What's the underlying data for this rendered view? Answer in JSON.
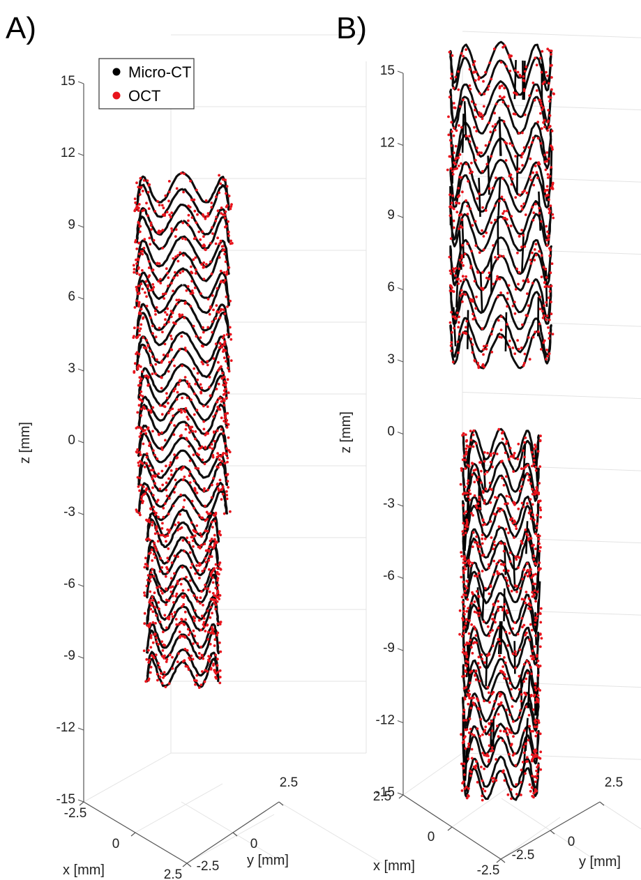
{
  "colors": {
    "micro_ct": "#000000",
    "oct": "#e8141c",
    "axis": "#555555",
    "grid": "#e3e3e3",
    "text": "#222222"
  },
  "legend": {
    "entries": [
      {
        "label": "Micro-CT",
        "color": "#000000"
      },
      {
        "label": "OCT",
        "color": "#e8141c"
      }
    ],
    "placement": "top-left of panel A"
  },
  "chart_data": [
    {
      "panel": "A)",
      "type": "scatter",
      "projection": "3d",
      "zlabel": "z [mm]",
      "xlabel": "x [mm]",
      "ylabel": "y [mm]",
      "zlim": [
        -15,
        15
      ],
      "zticks": [
        15,
        12,
        9,
        6,
        3,
        0,
        -3,
        -6,
        -9,
        -12,
        -15
      ],
      "xlim": [
        -2.5,
        2.5
      ],
      "xticks": [
        -2.5,
        0,
        2.5
      ],
      "ylim": [
        -2.5,
        2.5
      ],
      "yticks": [
        -2.5,
        0,
        2.5
      ],
      "grid": true,
      "series": [
        {
          "name": "Micro-CT",
          "color": "#000000",
          "marker": "line"
        },
        {
          "name": "OCT",
          "color": "#e8141c",
          "marker": "dot"
        }
      ],
      "stent": {
        "z_range": [
          -10,
          11
        ],
        "segments": [
          {
            "z0": 3,
            "z1": 11,
            "radius_mm": 2.2,
            "rings": 6
          },
          {
            "z0": -3,
            "z1": 3,
            "radius_mm": 2.1,
            "rings": 5
          },
          {
            "z0": -10,
            "z1": -3,
            "radius_mm": 1.7,
            "rings": 6
          }
        ]
      }
    },
    {
      "panel": "B)",
      "type": "scatter",
      "projection": "3d",
      "zlabel": "z [mm]",
      "xlabel": "x [mm]",
      "ylabel": "y [mm]",
      "zlim": [
        -15,
        15
      ],
      "zticks": [
        15,
        12,
        9,
        6,
        3,
        0,
        -3,
        -6,
        -9,
        -12,
        -15
      ],
      "xlim": [
        -2.5,
        2.5
      ],
      "xticks": [
        2.5,
        0,
        -2.5
      ],
      "ylim": [
        -2.5,
        2.5
      ],
      "yticks": [
        -2.5,
        0,
        2.5
      ],
      "grid": true,
      "series": [
        {
          "name": "Micro-CT",
          "color": "#000000",
          "marker": "line"
        },
        {
          "name": "OCT",
          "color": "#e8141c",
          "marker": "dot"
        }
      ],
      "stent": {
        "z_range": [
          -15,
          16
        ],
        "segments": [
          {
            "z0": 3,
            "z1": 16,
            "radius_mm": 2.4,
            "rings": 8
          },
          {
            "z0": -15,
            "z1": 0,
            "radius_mm": 1.8,
            "rings": 11
          }
        ]
      }
    }
  ]
}
